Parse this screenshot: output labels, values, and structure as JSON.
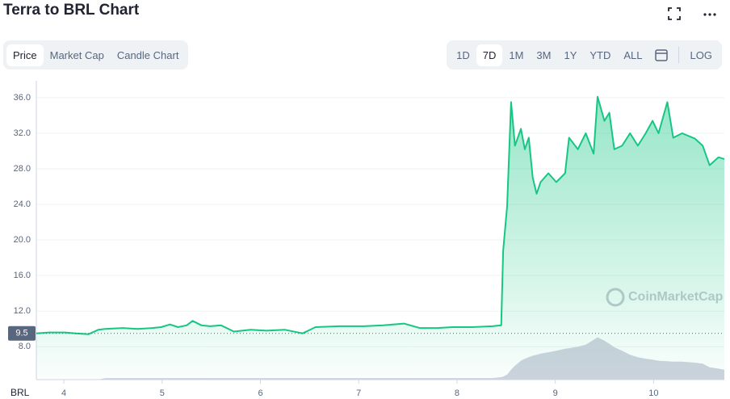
{
  "header": {
    "title": "Terra to BRL Chart"
  },
  "tabs": [
    "Price",
    "Market Cap",
    "Candle Chart"
  ],
  "ranges": [
    "1D",
    "7D",
    "1M",
    "3M",
    "1Y",
    "YTD",
    "ALL"
  ],
  "log_button": "LOG",
  "chart_data": {
    "type": "line",
    "x": [
      3.72,
      3.85,
      4.01,
      4.12,
      4.25,
      4.35,
      4.42,
      4.6,
      4.75,
      4.9,
      4.99,
      5.08,
      5.16,
      5.25,
      5.31,
      5.4,
      5.49,
      5.6,
      5.73,
      5.9,
      6.06,
      6.25,
      6.43,
      6.56,
      6.8,
      7.05,
      7.25,
      7.46,
      7.62,
      7.8,
      7.95,
      8.15,
      8.36,
      8.45,
      8.47,
      8.51,
      8.55,
      8.59,
      8.65,
      8.69,
      8.73,
      8.77,
      8.81,
      8.85,
      8.93,
      9.01,
      9.1,
      9.14,
      9.23,
      9.31,
      9.39,
      9.43,
      9.5,
      9.55,
      9.6,
      9.68,
      9.76,
      9.84,
      9.92,
      9.99,
      10.05,
      10.14,
      10.2,
      10.29,
      10.42,
      10.5,
      10.57,
      10.66,
      10.72
    ],
    "series": [
      {
        "color": "#16c784",
        "values": [
          9.5,
          9.6,
          9.6,
          9.5,
          9.4,
          9.9,
          10.0,
          10.1,
          10.0,
          10.1,
          10.2,
          10.5,
          10.2,
          10.4,
          10.9,
          10.4,
          10.3,
          10.4,
          9.7,
          9.9,
          9.8,
          9.9,
          9.5,
          10.2,
          10.3,
          10.3,
          10.4,
          10.6,
          10.1,
          10.1,
          10.2,
          10.2,
          10.3,
          10.4,
          18.8,
          23.8,
          35.5,
          30.6,
          32.5,
          30.2,
          31.5,
          27.0,
          25.2,
          26.5,
          27.5,
          26.5,
          27.5,
          31.5,
          30.2,
          32.0,
          29.7,
          36.1,
          33.4,
          34.3,
          30.2,
          30.6,
          32.0,
          30.6,
          32.0,
          33.4,
          32.0,
          35.5,
          31.5,
          32.0,
          31.4,
          30.6,
          28.4,
          29.3,
          29.1
        ]
      },
      {
        "color": "#cfd3de",
        "axis": "y2",
        "values": [
          0,
          0,
          0,
          0,
          0,
          0,
          3,
          3,
          3,
          3,
          3,
          3,
          3,
          3,
          3,
          3,
          3,
          3,
          3,
          3,
          3,
          3,
          3,
          3,
          3,
          3,
          3,
          3,
          3,
          3,
          3,
          3,
          3,
          5,
          6,
          10,
          20,
          28,
          38,
          42,
          45,
          48,
          50,
          52,
          55,
          58,
          62,
          63,
          66,
          70,
          80,
          85,
          78,
          72,
          65,
          58,
          50,
          45,
          42,
          40,
          38,
          37,
          36,
          36,
          34,
          32,
          25,
          22,
          20
        ]
      }
    ],
    "xlim": [
      3.72,
      10.72
    ],
    "ylim": [
      4.3,
      37.9
    ],
    "y2lim": [
      0,
      600
    ],
    "xticks": [
      4,
      5,
      6,
      7,
      8,
      9,
      10
    ],
    "yticks": [
      {
        "value": 8,
        "label": "8.0"
      },
      {
        "value": 12,
        "label": "12.0"
      },
      {
        "value": 16,
        "label": "16.0"
      },
      {
        "value": 20,
        "label": "20.0"
      },
      {
        "value": 24,
        "label": "24.0"
      },
      {
        "value": 28,
        "label": "28.0"
      },
      {
        "value": 32,
        "label": "32.0"
      },
      {
        "value": 36,
        "label": "36.0"
      }
    ],
    "reference_line": 9.5,
    "currency": "BRL",
    "watermark": "CoinMarketCap",
    "grid": true
  }
}
